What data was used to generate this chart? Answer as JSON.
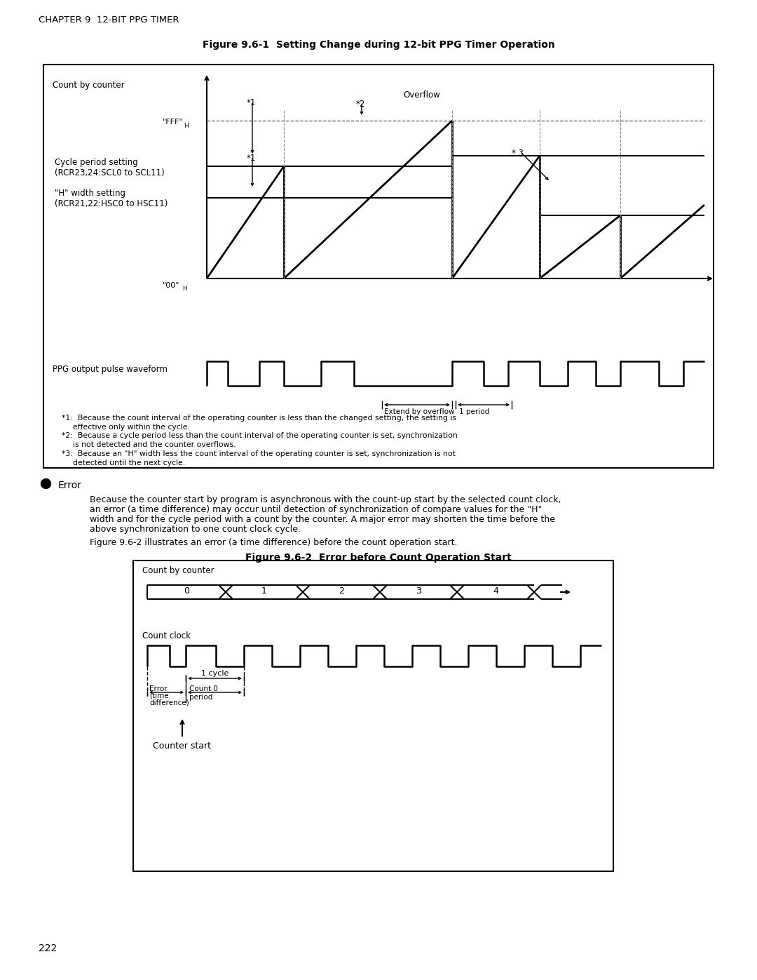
{
  "page_title": "CHAPTER 9  12-BIT PPG TIMER",
  "page_number": "222",
  "fig1_title": "Figure 9.6-1  Setting Change during 12-bit PPG Timer Operation",
  "fig2_title": "Figure 9.6-2  Error before Count Operation Start",
  "bg_color": "#ffffff",
  "fn1_line1": "*1:  Because the count interval of the operating counter is less than the changed setting, the setting is",
  "fn1_line2": "      effective only within the cycle.",
  "fn2_line1": "*2:  Because a cycle period less than the count interval of the operating counter is set, synchronization",
  "fn2_line2": "      is not detected and the counter overflows.",
  "fn3_line1": "*3:  Because an \"H\" width less the count interval of the operating counter is set, synchronization is not",
  "fn3_line2": "      detected until the next cycle.",
  "err_p1": "Because the counter start by program is asynchronous with the count-up start by the selected count clock,",
  "err_p2": "an error (a time difference) may occur until detection of synchronization of compare values for the \"H\"",
  "err_p3": "width and for the cycle period with a count by the counter. A major error may shorten the time before the",
  "err_p4": "above synchronization to one count clock cycle.",
  "err_p5": "Figure 9.6-2 illustrates an error (a time difference) before the count operation start."
}
